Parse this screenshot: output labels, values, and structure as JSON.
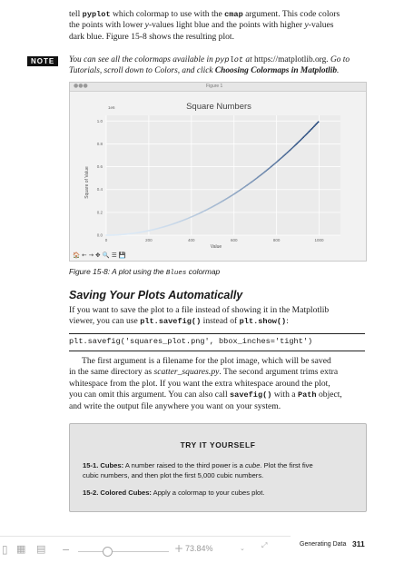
{
  "intro_paragraph": {
    "line1_a": "tell ",
    "line1_code1": "pyplot",
    "line1_b": " which colormap to use with the ",
    "line1_code2": "cmap",
    "line1_c": " argument. This code colors",
    "line2_a": "the points with lower ",
    "line2_y": "y",
    "line2_b": "-values light blue and the points with higher ",
    "line2_y2": "y",
    "line2_c": "-values",
    "line3": "dark blue. Figure 15-8 shows the resulting plot."
  },
  "note": {
    "badge": "NOTE",
    "line1_a": "You can see all the colormaps available in ",
    "line1_code": "pyplot",
    "line1_b": " at ",
    "line1_url": "https://matplotlib.org",
    "line1_c": ". Go to",
    "line2_a": "Tutorials, scroll down to Colors, and click ",
    "line2_b": "Choosing Colormaps in Matplotlib",
    "line2_c": "."
  },
  "figure": {
    "window_title": "Figure 1",
    "plot_title": "Square Numbers",
    "offset_label": "1e6",
    "toolbar_icons": [
      "home-icon",
      "back-arrow-icon",
      "forward-arrow-icon",
      "pan-icon",
      "zoom-icon",
      "configure-icon",
      "save-icon"
    ],
    "toolbar_glyphs": "🏠 ← → ✥ 🔍 ☰ 💾"
  },
  "chart_data": {
    "type": "scatter",
    "title": "Square Numbers",
    "xlabel": "Value",
    "ylabel": "Square of Value",
    "xlim": [
      0,
      1100
    ],
    "ylim": [
      0,
      1.05
    ],
    "y_offset_label": "1e6",
    "x_ticks": [
      0,
      200,
      400,
      600,
      800,
      1000
    ],
    "x_tick_labels": [
      "0",
      "200",
      "400",
      "600",
      "800",
      "1000"
    ],
    "y_ticks": [
      0.0,
      0.2,
      0.4,
      0.6,
      0.8,
      1.0
    ],
    "y_tick_labels": [
      "0.0",
      "0.2",
      "0.4",
      "0.6",
      "0.8",
      "1.0"
    ],
    "colormap": "Blues",
    "x_range": [
      1,
      1000
    ],
    "function": "y = x^2 / 1e6",
    "grid": true,
    "legend": "none"
  },
  "caption": {
    "label": "Figure 15-8:",
    "text": " A plot using the ",
    "code": "Blues",
    "text2": " colormap"
  },
  "section": {
    "title": "Saving Your Plots Automatically",
    "p1_line1": "If you want to save the plot to a file instead of showing it in the Matplotlib",
    "p1_line2_a": "viewer, you can use ",
    "p1_code1": "plt.savefig()",
    "p1_line2_b": " instead of ",
    "p1_code2": "plt.show()",
    "p1_line2_c": ":"
  },
  "code_line": "plt.savefig('squares_plot.png', bbox_inches='tight')",
  "paragraph2": {
    "l1": "The first argument is a filename for the plot image, which will be saved",
    "l2_a": "in the same directory as ",
    "l2_file": "scatter_squares.py",
    "l2_b": ". The second argument trims extra",
    "l3": "whitespace from the plot. If you want the extra whitespace around the plot,",
    "l4_a": "you can omit this argument. You can also call ",
    "l4_code1": "savefig()",
    "l4_b": " with a ",
    "l4_code2": "Path",
    "l4_c": " object,",
    "l5": "and write the output file anywhere you want on your system."
  },
  "try_it": {
    "title": "TRY IT YOURSELF",
    "item1_label": "15-1. Cubes:",
    "item1_l1": " A number raised to the third power is a ",
    "item1_cube": "cube",
    "item1_l1b": ". Plot the first five",
    "item1_l2": "cubic numbers, and then plot the first 5,000 cubic numbers.",
    "item2_label": "15-2. Colored Cubes:",
    "item2_text": " Apply a colormap to your cubes plot."
  },
  "footer": {
    "running_head": "Generating Data",
    "page_number": "311"
  },
  "viewer_toolbar": {
    "zoom_value": "73.84%",
    "plus": "+",
    "minus": "−"
  }
}
